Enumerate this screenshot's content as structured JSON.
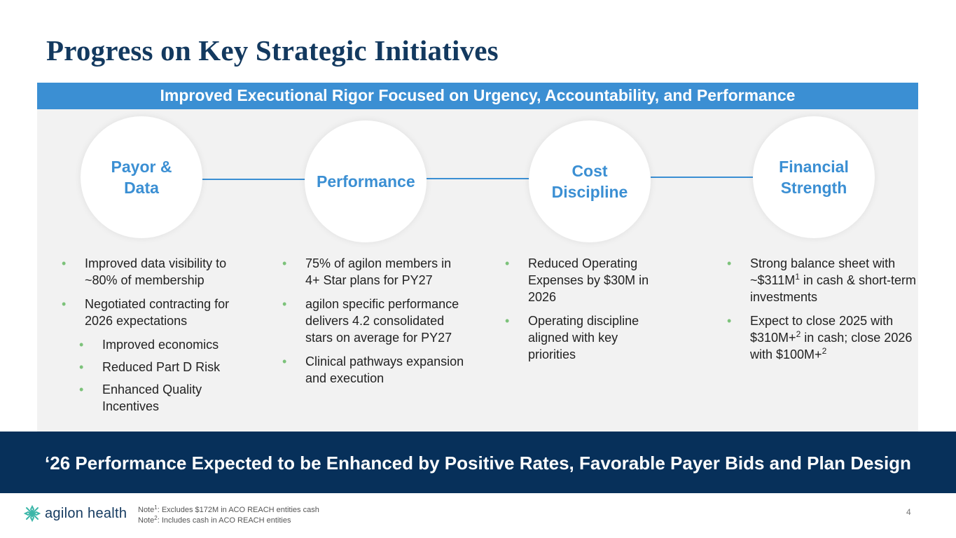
{
  "title": "Progress on Key Strategic Initiatives",
  "banner": "Improved Executional Rigor Focused on Urgency, Accountability, and Performance",
  "pillars": [
    {
      "name": "Payor &\nData",
      "bullets": [
        {
          "text": "Improved data visibility to ~80% of membership"
        },
        {
          "text": "Negotiated contracting for 2026 expectations"
        }
      ],
      "sub_bullets": [
        {
          "text": "Improved economics"
        },
        {
          "text": "Reduced Part D Risk"
        },
        {
          "text": "Enhanced Quality Incentives"
        }
      ]
    },
    {
      "name": "Performance",
      "bullets": [
        {
          "text": "75% of agilon members in 4+ Star plans for PY27"
        },
        {
          "text": "agilon specific performance delivers 4.2 consolidated stars on average for PY27"
        },
        {
          "text": "Clinical pathways expansion and execution"
        }
      ]
    },
    {
      "name": "Cost\nDiscipline",
      "bullets": [
        {
          "text": "Reduced Operating Expenses by $30M in 2026"
        },
        {
          "text": "Operating discipline aligned with key priorities"
        }
      ]
    },
    {
      "name": "Financial\nStrength",
      "bullets": [
        {
          "pre": "Strong balance sheet with ~$311M",
          "sup": "1",
          "post": " in cash & short-term investments"
        },
        {
          "pre": "Expect to close 2025 with $310M+",
          "sup": "2",
          "post": " in cash; close 2026 with $100M+",
          "sup2": "2"
        }
      ]
    }
  ],
  "footer_banner": "‘26 Performance Expected to be Enhanced by Positive Rates, Favorable Payer Bids and Plan Design",
  "logo": {
    "text": "agilon health",
    "icon": "agilon-health-logo-icon"
  },
  "notes": [
    {
      "label": "Note",
      "sup": "1",
      "text": ": Excludes $172M in ACO REACH entities cash"
    },
    {
      "label": "Note",
      "sup": "2",
      "text": ": Includes cash in ACO REACH entities"
    }
  ],
  "page_number": "4",
  "colors": {
    "navy": "#13395f",
    "accent_blue": "#3b8fd3",
    "panel_gray": "#f2f2f2",
    "bullet_green": "#7cc27a",
    "footer_navy": "#07305a",
    "logo_teal": "#3bb6a8"
  }
}
